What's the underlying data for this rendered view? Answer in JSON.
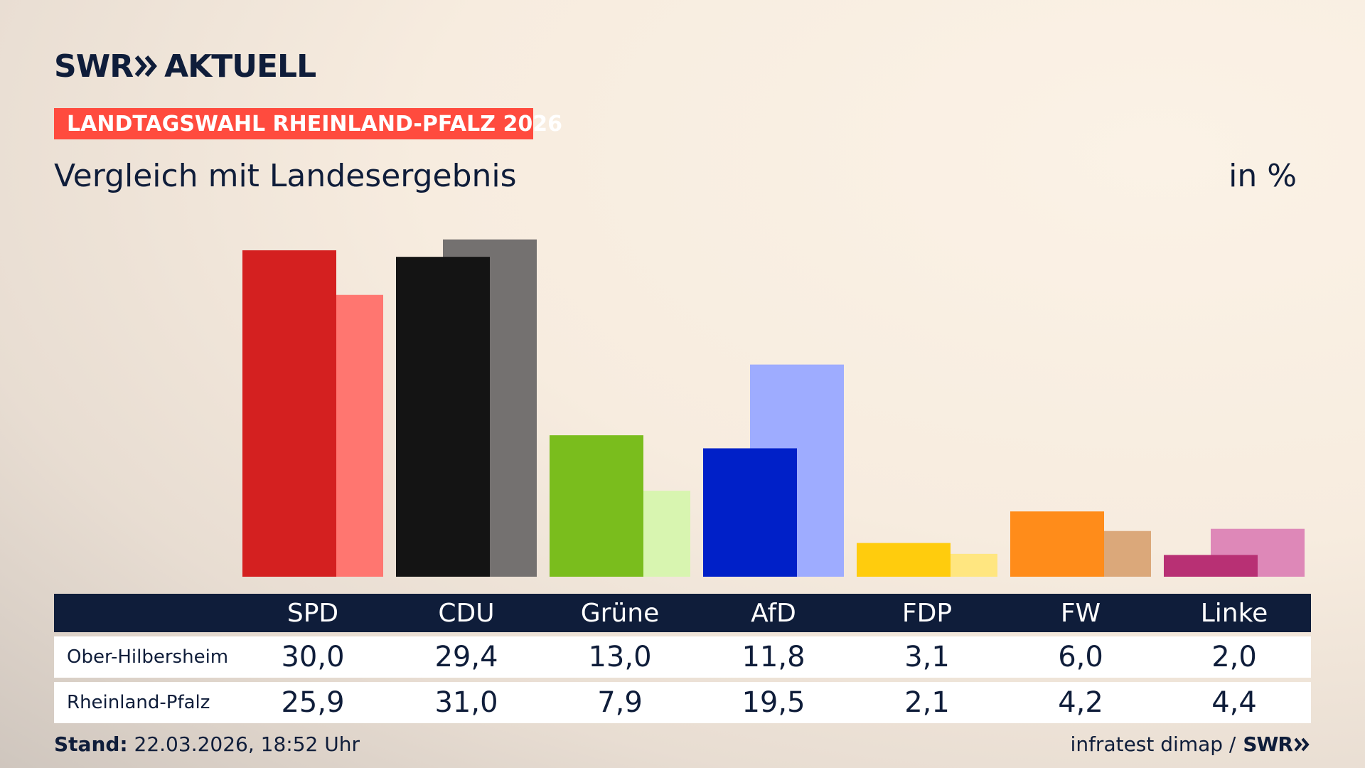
{
  "header": {
    "logo_swr": "SWR",
    "logo_aktuell": "AKTUELL",
    "badge": "LANDTAGSWAHL RHEINLAND-PFALZ 2026",
    "subtitle": "Vergleich mit Landesergebnis",
    "unit": "in %"
  },
  "colors": {
    "navy": "#0f1d3a",
    "badge": "#ff4b3e"
  },
  "chart_data": {
    "type": "bar",
    "title": "Vergleich mit Landesergebnis",
    "ylabel": "in %",
    "ylim": [
      0,
      32
    ],
    "categories": [
      "SPD",
      "CDU",
      "Grüne",
      "AfD",
      "FDP",
      "FW",
      "Linke"
    ],
    "series": [
      {
        "name": "Ober-Hilbersheim",
        "values": [
          30.0,
          29.4,
          13.0,
          11.8,
          3.1,
          6.0,
          2.0
        ],
        "labels": [
          "30,0",
          "29,4",
          "13,0",
          "11,8",
          "3,1",
          "6,0",
          "2,0"
        ],
        "colors": [
          "#d42020",
          "#141414",
          "#7abd1d",
          "#0020c8",
          "#ffcc0d",
          "#ff8c1a",
          "#b83074"
        ]
      },
      {
        "name": "Rheinland-Pfalz",
        "values": [
          25.9,
          31.0,
          7.9,
          19.5,
          2.1,
          4.2,
          4.4
        ],
        "labels": [
          "25,9",
          "31,0",
          "7,9",
          "19,5",
          "2,1",
          "4,2",
          "4,4"
        ],
        "colors": [
          "#ff7670",
          "#747170",
          "#d8f5b0",
          "#9eacff",
          "#ffe680",
          "#dba87a",
          "#de88b8"
        ]
      }
    ]
  },
  "footer": {
    "stand_label": "Stand:",
    "stand_value": "22.03.2026, 18:52 Uhr",
    "source": "infratest dimap /",
    "source_logo": "SWR"
  }
}
